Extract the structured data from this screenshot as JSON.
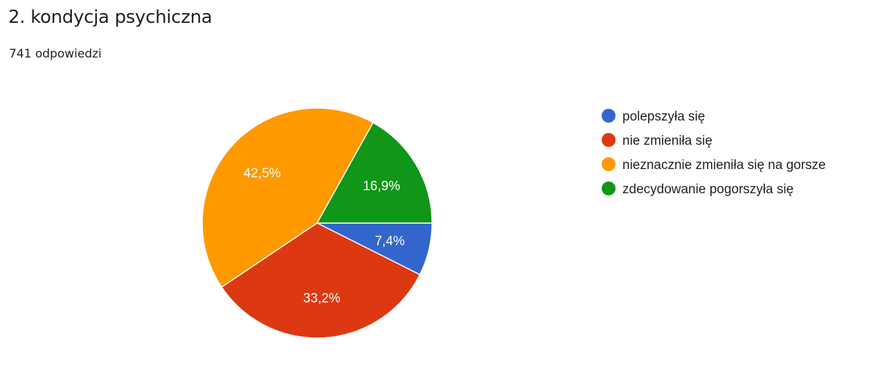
{
  "header": {
    "title": "2. kondycja psychiczna",
    "responses": "741 odpowiedzi"
  },
  "chart_data": {
    "type": "pie",
    "title": "2. kondycja psychiczna",
    "categories": [
      "polepszyła się",
      "nie zmieniła się",
      "nieznacznie zmieniła się na gorsze",
      "zdecydowanie pogorszyła się"
    ],
    "values": [
      7.4,
      33.2,
      42.5,
      16.9
    ],
    "labels": [
      "7,4%",
      "33,2%",
      "42,5%",
      "16,9%"
    ],
    "colors": [
      "#3366cc",
      "#dc3912",
      "#ff9900",
      "#109618"
    ],
    "start": "3 o'clock, clockwise",
    "legend_position": "right"
  }
}
